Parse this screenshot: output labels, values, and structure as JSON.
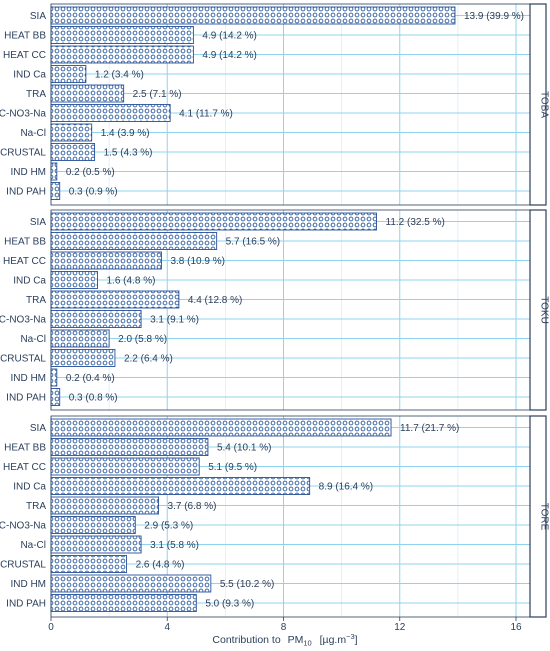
{
  "chart_data": {
    "type": "bar",
    "orientation": "horizontal",
    "categories": [
      "SIA",
      "HEAT BB",
      "HEAT CC",
      "IND Ca",
      "TRA",
      "C-NO3-Na",
      "Na-Cl",
      "CRUSTAL",
      "IND HM",
      "IND PAH"
    ],
    "xlabel": {
      "prefix": "Contribution to",
      "base": "PM",
      "sub": "10",
      "unit_open": "[µg.m",
      "unit_sup": "−3",
      "unit_close": "]"
    },
    "xlim": [
      0,
      16.5
    ],
    "xticks": [
      "0",
      "4",
      "8",
      "12",
      "16"
    ],
    "xtick_values": [
      0,
      4,
      8,
      12,
      16
    ],
    "grid": true,
    "facets": [
      {
        "name": "TOBA",
        "values": [
          13.9,
          4.9,
          4.9,
          1.2,
          2.5,
          4.1,
          1.4,
          1.5,
          0.2,
          0.3
        ],
        "labels": [
          "13.9 (39.9 %)",
          "4.9 (14.2 %)",
          "4.9 (14.2 %)",
          "1.2 (3.4 %)",
          "2.5 (7.1 %)",
          "4.1 (11.7 %)",
          "1.4 (3.9 %)",
          "1.5 (4.3 %)",
          "0.2 (0.5 %)",
          "0.3 (0.9 %)"
        ]
      },
      {
        "name": "TOKU",
        "values": [
          11.2,
          5.7,
          3.8,
          1.6,
          4.4,
          3.1,
          2.0,
          2.2,
          0.2,
          0.3
        ],
        "labels": [
          "11.2 (32.5 %)",
          "5.7 (16.5 %)",
          "3.8 (10.9 %)",
          "1.6 (4.8 %)",
          "4.4 (12.8 %)",
          "3.1 (9.1 %)",
          "2.0 (5.8 %)",
          "2.2 (6.4 %)",
          "0.2 (0.4 %)",
          "0.3 (0.8 %)"
        ]
      },
      {
        "name": "TORE",
        "values": [
          11.7,
          5.4,
          5.1,
          8.9,
          3.7,
          2.9,
          3.1,
          2.6,
          5.5,
          5.0
        ],
        "labels": [
          "11.7 (21.7 %)",
          "5.4 (10.1 %)",
          "5.1 (9.5 %)",
          "8.9 (16.4 %)",
          "3.7 (6.8 %)",
          "2.9 (5.3 %)",
          "3.1 (5.8 %)",
          "2.6 (4.8 %)",
          "5.5 (10.2 %)",
          "5.0 (9.3 %)"
        ]
      }
    ],
    "colors": {
      "bar_fill": "#ffffff",
      "bar_pattern": "#2a5a9c",
      "bar_stroke": "#27509a",
      "grid_major": "#8fd4ee",
      "grid_minor": "#d6eef8",
      "text": "#2b3f5c",
      "frame": "#2b3f5c"
    }
  }
}
